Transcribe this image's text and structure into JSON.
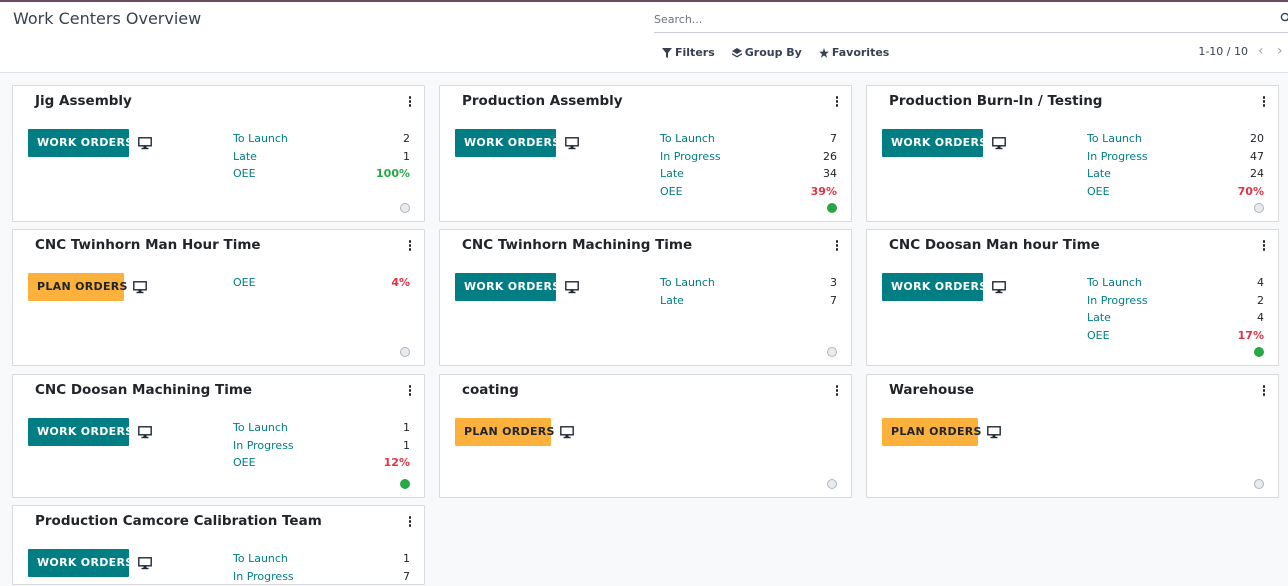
{
  "header": {
    "title": "Work Centers Overview",
    "search_placeholder": "Search...",
    "filters_label": "Filters",
    "group_by_label": "Group By",
    "favorites_label": "Favorites",
    "pager": "1-10 / 10",
    "prev": "‹",
    "next": "›"
  },
  "colors": {
    "teal": "#017e84",
    "orange": "#fbb13c",
    "green": "#28a745",
    "red": "#dc3545"
  },
  "cards": [
    {
      "title": "Jig Assembly",
      "button": "WORK ORDERS",
      "button_type": "work",
      "stats": [
        {
          "label": "To Launch",
          "value": "2"
        },
        {
          "label": "Late",
          "value": "1"
        },
        {
          "label": "OEE",
          "value": "100%",
          "kind": "good"
        }
      ],
      "status": "grey"
    },
    {
      "title": "Production Assembly",
      "button": "WORK ORDERS",
      "button_type": "work",
      "stats": [
        {
          "label": "To Launch",
          "value": "7"
        },
        {
          "label": "In Progress",
          "value": "26"
        },
        {
          "label": "Late",
          "value": "34"
        },
        {
          "label": "OEE",
          "value": "39%",
          "kind": "bad"
        }
      ],
      "status": "green"
    },
    {
      "title": "Production Burn-In / Testing",
      "button": "WORK ORDERS",
      "button_type": "work",
      "stats": [
        {
          "label": "To Launch",
          "value": "20"
        },
        {
          "label": "In Progress",
          "value": "47"
        },
        {
          "label": "Late",
          "value": "24"
        },
        {
          "label": "OEE",
          "value": "70%",
          "kind": "bad"
        }
      ],
      "status": "grey"
    },
    {
      "title": "CNC Twinhorn Man Hour Time",
      "button": "PLAN ORDERS",
      "button_type": "plan",
      "stats": [
        {
          "label": "OEE",
          "value": "4%",
          "kind": "bad"
        }
      ],
      "status": "grey"
    },
    {
      "title": "CNC Twinhorn Machining Time",
      "button": "WORK ORDERS",
      "button_type": "work",
      "stats": [
        {
          "label": "To Launch",
          "value": "3"
        },
        {
          "label": "Late",
          "value": "7"
        }
      ],
      "status": "grey"
    },
    {
      "title": "CNC Doosan Man hour Time",
      "button": "WORK ORDERS",
      "button_type": "work",
      "stats": [
        {
          "label": "To Launch",
          "value": "4"
        },
        {
          "label": "In Progress",
          "value": "2"
        },
        {
          "label": "Late",
          "value": "4"
        },
        {
          "label": "OEE",
          "value": "17%",
          "kind": "bad"
        }
      ],
      "status": "green"
    },
    {
      "title": "CNC Doosan Machining Time",
      "button": "WORK ORDERS",
      "button_type": "work",
      "stats": [
        {
          "label": "To Launch",
          "value": "1"
        },
        {
          "label": "In Progress",
          "value": "1"
        },
        {
          "label": "OEE",
          "value": "12%",
          "kind": "bad"
        }
      ],
      "status": "green"
    },
    {
      "title": "coating",
      "button": "PLAN ORDERS",
      "button_type": "plan",
      "stats": [],
      "status": "grey"
    },
    {
      "title": "Warehouse",
      "button": "PLAN ORDERS",
      "button_type": "plan",
      "stats": [],
      "status": "grey"
    },
    {
      "title": "Production Camcore Calibration Team",
      "button": "WORK ORDERS",
      "button_type": "work",
      "stats": [
        {
          "label": "To Launch",
          "value": "1"
        },
        {
          "label": "In Progress",
          "value": "7"
        }
      ],
      "status": "none"
    }
  ]
}
